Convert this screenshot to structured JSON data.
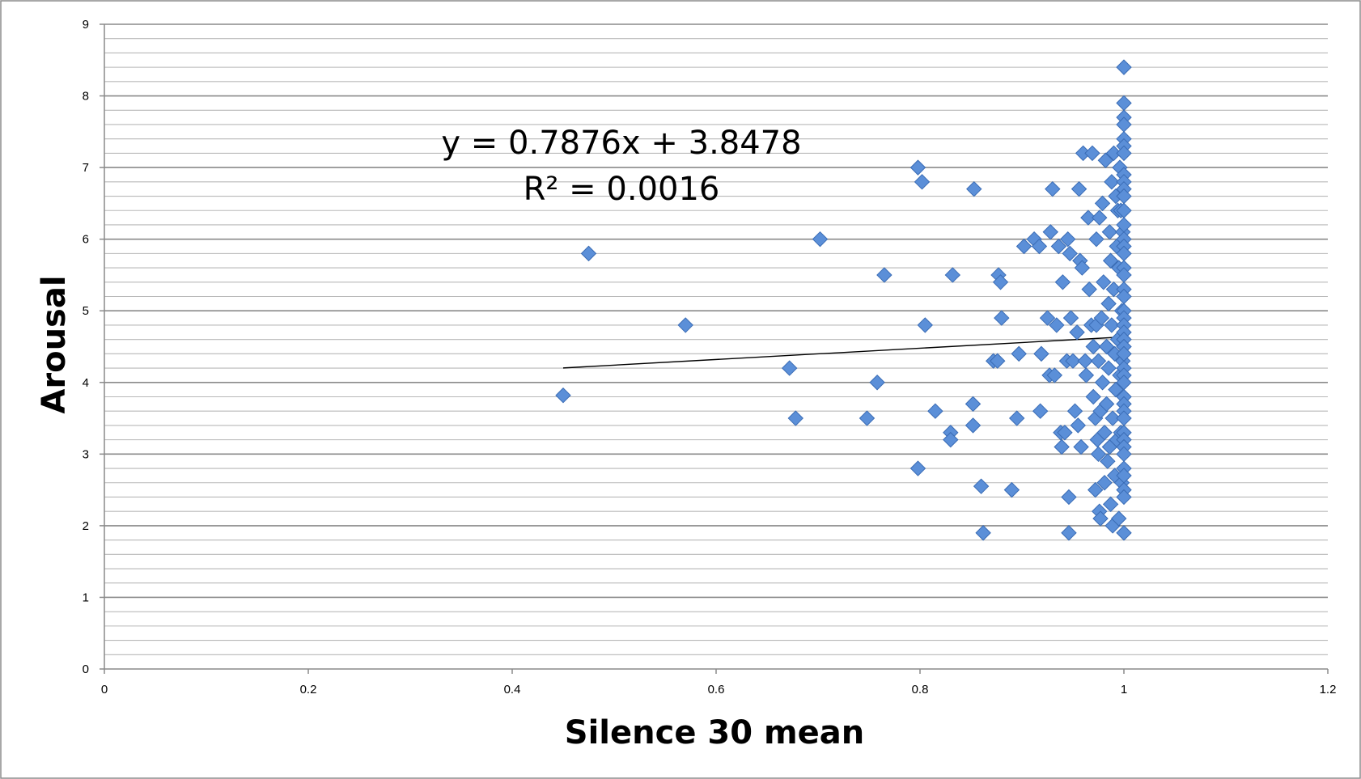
{
  "chart_data": {
    "type": "scatter",
    "title": "",
    "xlabel": "Silence 30 mean",
    "ylabel": "Arousal",
    "xlim": [
      0,
      1.2
    ],
    "ylim": [
      0,
      9
    ],
    "x_ticks": [
      "0",
      "0.2",
      "0.4",
      "0.6",
      "0.8",
      "1",
      "1.2"
    ],
    "y_ticks": [
      "0",
      "1",
      "2",
      "3",
      "4",
      "5",
      "6",
      "7",
      "8",
      "9"
    ],
    "grid": "horizontal major and minor",
    "legend": "none",
    "marker": "diamond",
    "marker_color": "#5b8fd8",
    "trendline": {
      "type": "linear",
      "slope": 0.7876,
      "intercept": 3.8478,
      "x_range": [
        0.45,
        1.0
      ],
      "equation": "y = 0.7876x + 3.8478",
      "r_squared": "R² = 0.0016"
    },
    "series": [
      {
        "points": [
          [
            0.45,
            3.82
          ],
          [
            0.475,
            5.8
          ],
          [
            0.57,
            4.8
          ],
          [
            0.672,
            4.2
          ],
          [
            0.678,
            3.5
          ],
          [
            0.702,
            6.0
          ],
          [
            0.748,
            3.5
          ],
          [
            0.758,
            4.0
          ],
          [
            0.765,
            5.5
          ],
          [
            0.798,
            7.0
          ],
          [
            0.798,
            2.8
          ],
          [
            0.802,
            6.8
          ],
          [
            0.805,
            4.8
          ],
          [
            0.815,
            3.6
          ],
          [
            0.83,
            3.3
          ],
          [
            0.83,
            3.2
          ],
          [
            0.832,
            5.5
          ],
          [
            0.852,
            3.7
          ],
          [
            0.852,
            3.4
          ],
          [
            0.853,
            6.7
          ],
          [
            0.86,
            2.55
          ],
          [
            0.862,
            1.9
          ],
          [
            0.872,
            4.3
          ],
          [
            0.876,
            4.3
          ],
          [
            0.877,
            5.5
          ],
          [
            0.879,
            5.4
          ],
          [
            0.88,
            4.9
          ],
          [
            0.89,
            2.5
          ],
          [
            0.895,
            3.5
          ],
          [
            0.897,
            4.4
          ],
          [
            0.902,
            5.9
          ],
          [
            0.912,
            6.0
          ],
          [
            0.917,
            5.9
          ],
          [
            0.918,
            3.6
          ],
          [
            0.919,
            4.4
          ],
          [
            0.925,
            4.9
          ],
          [
            0.927,
            4.1
          ],
          [
            0.928,
            6.1
          ],
          [
            0.93,
            6.7
          ],
          [
            0.932,
            4.1
          ],
          [
            0.934,
            4.8
          ],
          [
            0.936,
            5.9
          ],
          [
            0.938,
            3.3
          ],
          [
            0.939,
            3.1
          ],
          [
            0.94,
            5.4
          ],
          [
            0.942,
            3.3
          ],
          [
            0.944,
            4.3
          ],
          [
            0.945,
            6.0
          ],
          [
            0.946,
            2.4
          ],
          [
            0.946,
            1.9
          ],
          [
            0.947,
            5.8
          ],
          [
            0.948,
            4.9
          ],
          [
            0.95,
            4.3
          ],
          [
            0.952,
            3.6
          ],
          [
            0.954,
            4.7
          ],
          [
            0.955,
            3.4
          ],
          [
            0.956,
            6.7
          ],
          [
            0.957,
            5.7
          ],
          [
            0.958,
            3.1
          ],
          [
            0.959,
            5.6
          ],
          [
            0.96,
            7.2
          ],
          [
            0.962,
            4.3
          ],
          [
            0.963,
            4.1
          ],
          [
            0.965,
            6.3
          ],
          [
            0.966,
            5.3
          ],
          [
            0.968,
            4.8
          ],
          [
            0.969,
            7.2
          ],
          [
            0.97,
            4.5
          ],
          [
            0.97,
            3.8
          ],
          [
            0.972,
            3.5
          ],
          [
            0.972,
            2.5
          ],
          [
            0.973,
            6.0
          ],
          [
            0.973,
            4.8
          ],
          [
            0.974,
            3.2
          ],
          [
            0.975,
            4.3
          ],
          [
            0.975,
            3.0
          ],
          [
            0.976,
            2.2
          ],
          [
            0.976,
            6.3
          ],
          [
            0.977,
            3.6
          ],
          [
            0.977,
            2.1
          ],
          [
            0.978,
            4.9
          ],
          [
            0.979,
            6.5
          ],
          [
            0.979,
            4.0
          ],
          [
            0.98,
            5.4
          ],
          [
            0.981,
            3.3
          ],
          [
            0.981,
            2.6
          ],
          [
            0.982,
            7.1
          ],
          [
            0.983,
            4.5
          ],
          [
            0.983,
            3.7
          ],
          [
            0.984,
            2.9
          ],
          [
            0.985,
            5.1
          ],
          [
            0.985,
            4.2
          ],
          [
            0.986,
            6.1
          ],
          [
            0.986,
            3.1
          ],
          [
            0.987,
            5.7
          ],
          [
            0.987,
            2.3
          ],
          [
            0.988,
            6.8
          ],
          [
            0.988,
            4.8
          ],
          [
            0.989,
            3.5
          ],
          [
            0.989,
            2.0
          ],
          [
            0.99,
            7.2
          ],
          [
            0.99,
            5.3
          ],
          [
            0.991,
            4.4
          ],
          [
            0.991,
            2.7
          ],
          [
            0.992,
            6.6
          ],
          [
            0.992,
            3.9
          ],
          [
            0.993,
            5.9
          ],
          [
            0.993,
            3.2
          ],
          [
            0.994,
            6.4
          ],
          [
            0.994,
            4.6
          ],
          [
            0.995,
            2.1
          ],
          [
            0.995,
            5.6
          ],
          [
            0.996,
            7.0
          ],
          [
            0.996,
            4.1
          ],
          [
            0.997,
            3.3
          ],
          [
            0.997,
            6.4
          ],
          [
            0.998,
            5.0
          ],
          [
            0.998,
            2.6
          ],
          [
            0.999,
            4.3
          ],
          [
            0.999,
            6.1
          ],
          [
            1.0,
            8.4
          ],
          [
            1.0,
            7.9
          ],
          [
            1.0,
            7.7
          ],
          [
            1.0,
            7.6
          ],
          [
            1.0,
            7.4
          ],
          [
            1.0,
            7.3
          ],
          [
            1.0,
            7.2
          ],
          [
            1.0,
            6.9
          ],
          [
            1.0,
            6.8
          ],
          [
            1.0,
            6.7
          ],
          [
            1.0,
            6.6
          ],
          [
            1.0,
            6.4
          ],
          [
            1.0,
            6.2
          ],
          [
            1.0,
            6.0
          ],
          [
            1.0,
            5.9
          ],
          [
            1.0,
            5.8
          ],
          [
            1.0,
            5.6
          ],
          [
            1.0,
            5.5
          ],
          [
            1.0,
            5.3
          ],
          [
            1.0,
            5.2
          ],
          [
            1.0,
            5.0
          ],
          [
            1.0,
            4.9
          ],
          [
            1.0,
            4.8
          ],
          [
            1.0,
            4.7
          ],
          [
            1.0,
            4.6
          ],
          [
            1.0,
            4.5
          ],
          [
            1.0,
            4.4
          ],
          [
            1.0,
            4.2
          ],
          [
            1.0,
            4.1
          ],
          [
            1.0,
            4.0
          ],
          [
            1.0,
            3.8
          ],
          [
            1.0,
            3.7
          ],
          [
            1.0,
            3.6
          ],
          [
            1.0,
            3.5
          ],
          [
            1.0,
            3.3
          ],
          [
            1.0,
            3.2
          ],
          [
            1.0,
            3.1
          ],
          [
            1.0,
            3.0
          ],
          [
            1.0,
            2.8
          ],
          [
            1.0,
            2.7
          ],
          [
            1.0,
            2.5
          ],
          [
            1.0,
            2.4
          ],
          [
            1.0,
            1.9
          ]
        ]
      }
    ]
  }
}
